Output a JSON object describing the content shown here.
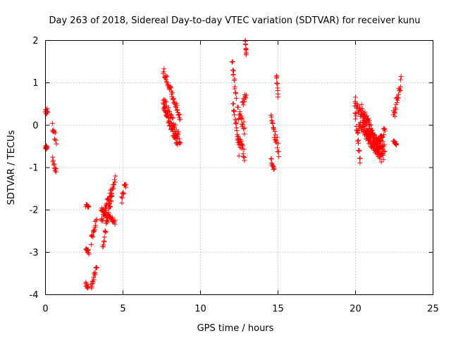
{
  "chart_data": {
    "type": "scatter",
    "title": "Day 263 of 2018, Sidereal Day-to-day VTEC variation (SDTVAR) for receiver kunu",
    "xlabel": "GPS time / hours",
    "ylabel": "SDTVAR / TECUs",
    "xlim": [
      0,
      25
    ],
    "ylim": [
      -4,
      2
    ],
    "xticks": [
      0,
      5,
      10,
      15,
      20,
      25
    ],
    "yticks": [
      -4,
      -3,
      -2,
      -1,
      0,
      1,
      2
    ],
    "grid": true,
    "marker": "+",
    "color": "#ff0000",
    "series": [
      {
        "name": "SDTVAR",
        "tracks": [
          {
            "t": [
              0.0,
              0.15
            ],
            "v": [
              0.3,
              0.35
            ],
            "spread": 0.08
          },
          {
            "t": [
              0.0,
              0.1
            ],
            "v": [
              -0.5,
              -0.55
            ],
            "spread": 0.05
          },
          {
            "t": [
              0.45,
              0.7
            ],
            "v": [
              0.0,
              -0.4
            ],
            "spread": 0.1
          },
          {
            "t": [
              0.45,
              0.7
            ],
            "v": [
              -0.8,
              -1.1
            ],
            "spread": 0.08
          },
          {
            "t": [
              2.6,
              2.8
            ],
            "v": [
              -1.9,
              -1.95
            ],
            "spread": 0.04
          },
          {
            "t": [
              2.6,
              2.8
            ],
            "v": [
              -2.9,
              -3.0
            ],
            "spread": 0.05
          },
          {
            "t": [
              2.6,
              2.75
            ],
            "v": [
              -3.75,
              -3.85
            ],
            "spread": 0.05
          },
          {
            "t": [
              2.95,
              3.3
            ],
            "v": [
              -3.8,
              -3.35
            ],
            "spread": 0.08
          },
          {
            "t": [
              2.95,
              3.3
            ],
            "v": [
              -2.75,
              -2.2
            ],
            "spread": 0.12
          },
          {
            "t": [
              3.7,
              4.5
            ],
            "v": [
              -2.85,
              -1.2
            ],
            "spread": 0.1
          },
          {
            "t": [
              3.6,
              4.3
            ],
            "v": [
              -2.3,
              -1.5
            ],
            "spread": 0.12
          },
          {
            "t": [
              3.6,
              4.5
            ],
            "v": [
              -2.0,
              -2.3
            ],
            "spread": 0.06
          },
          {
            "t": [
              4.9,
              5.2
            ],
            "v": [
              -1.75,
              -1.35
            ],
            "spread": 0.12
          },
          {
            "t": [
              7.6,
              8.7
            ],
            "v": [
              1.3,
              0.2
            ],
            "spread": 0.1
          },
          {
            "t": [
              7.6,
              8.7
            ],
            "v": [
              0.6,
              -0.35
            ],
            "spread": 0.12
          },
          {
            "t": [
              7.6,
              8.5
            ],
            "v": [
              0.45,
              -0.4
            ],
            "spread": 0.1
          },
          {
            "t": [
              12.05,
              12.3
            ],
            "v": [
              1.5,
              0.7
            ],
            "spread": 0.12
          },
          {
            "t": [
              12.1,
              12.5
            ],
            "v": [
              0.5,
              -0.6
            ],
            "spread": 0.15
          },
          {
            "t": [
              12.4,
              12.85
            ],
            "v": [
              -0.2,
              -0.75
            ],
            "spread": 0.15
          },
          {
            "t": [
              12.4,
              12.85
            ],
            "v": [
              0.3,
              -0.1
            ],
            "spread": 0.15
          },
          {
            "t": [
              12.7,
              12.95
            ],
            "v": [
              0.5,
              0.75
            ],
            "spread": 0.1
          },
          {
            "t": [
              12.9,
              12.95
            ],
            "v": [
              2.0,
              1.65
            ],
            "spread": 0.05
          },
          {
            "t": [
              14.55,
              15.05
            ],
            "v": [
              0.2,
              -0.6
            ],
            "spread": 0.15
          },
          {
            "t": [
              14.55,
              14.75
            ],
            "v": [
              -0.8,
              -1.05
            ],
            "spread": 0.06
          },
          {
            "t": [
              14.9,
              15.0
            ],
            "v": [
              1.2,
              0.7
            ],
            "spread": 0.06
          },
          {
            "t": [
              19.95,
              20.3
            ],
            "v": [
              0.5,
              -0.9
            ],
            "spread": 0.15
          },
          {
            "t": [
              20.0,
              21.5
            ],
            "v": [
              0.55,
              -0.7
            ],
            "spread": 0.12
          },
          {
            "t": [
              20.2,
              21.9
            ],
            "v": [
              0.0,
              -0.55
            ],
            "spread": 0.12
          },
          {
            "t": [
              20.4,
              21.8
            ],
            "v": [
              0.4,
              -0.75
            ],
            "spread": 0.12
          },
          {
            "t": [
              20.6,
              21.7
            ],
            "v": [
              -0.2,
              -0.8
            ],
            "spread": 0.1
          },
          {
            "t": [
              21.5,
              21.9
            ],
            "v": [
              -0.45,
              -0.05
            ],
            "spread": 0.1
          },
          {
            "t": [
              22.45,
              22.65
            ],
            "v": [
              -0.35,
              -0.45
            ],
            "spread": 0.04
          },
          {
            "t": [
              22.45,
              22.95
            ],
            "v": [
              0.2,
              1.05
            ],
            "spread": 0.12
          }
        ]
      }
    ]
  }
}
